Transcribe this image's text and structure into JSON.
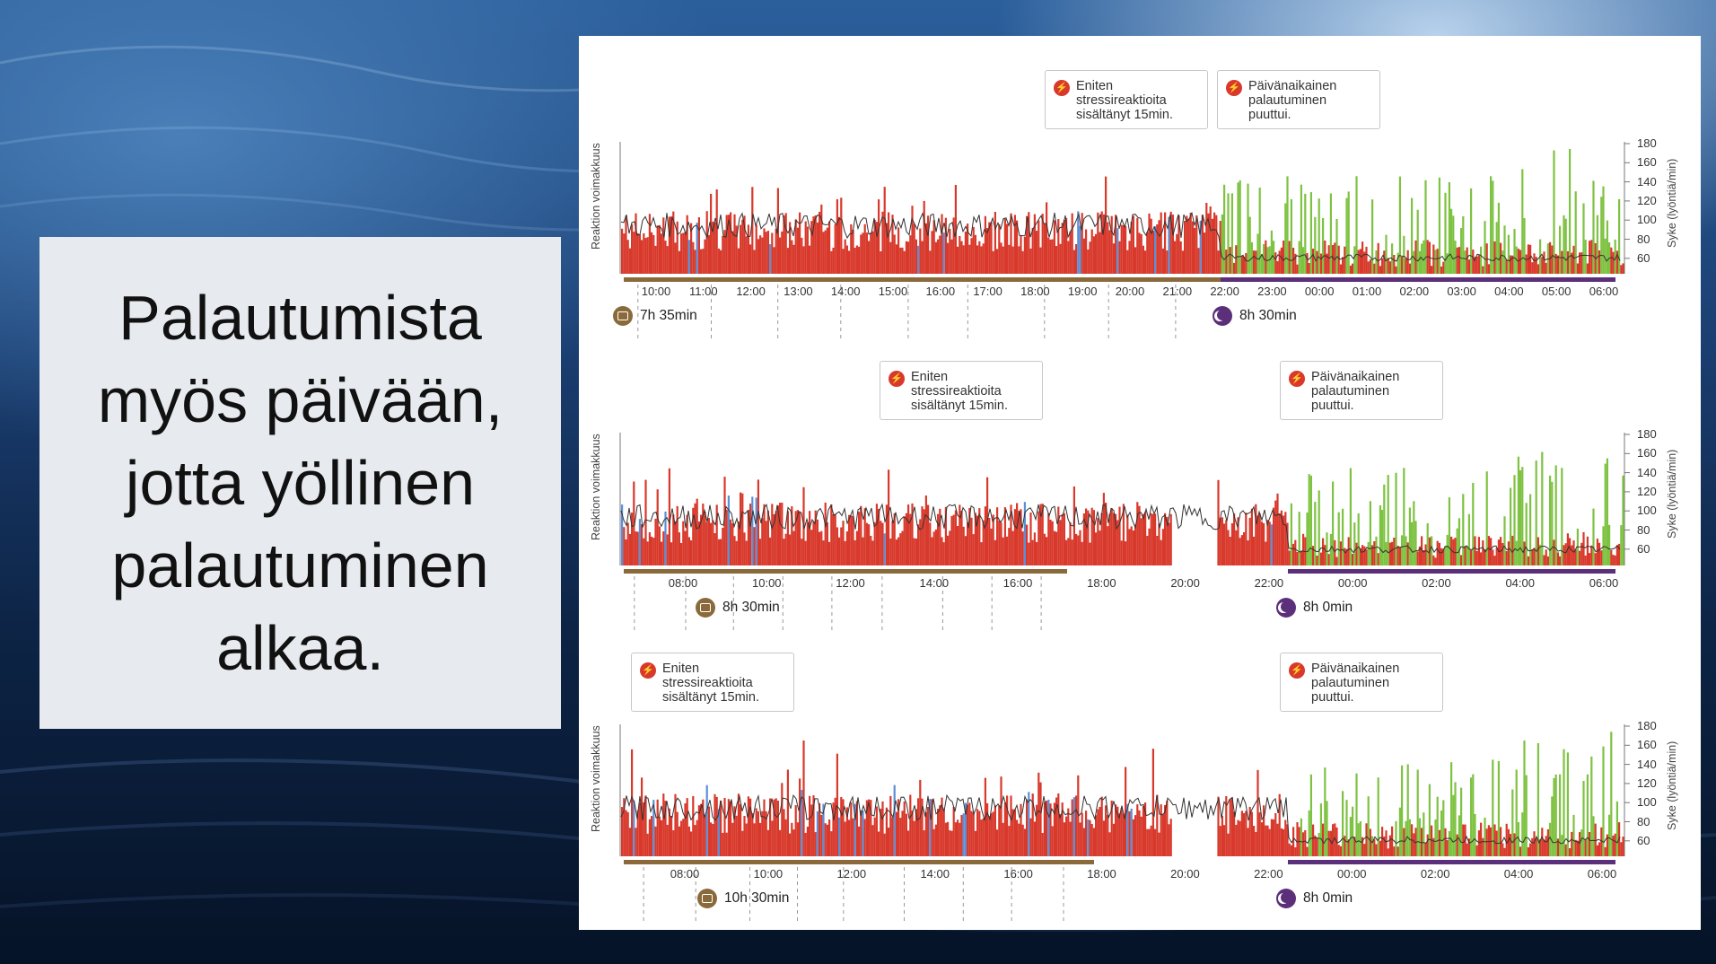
{
  "slide": {
    "headline": "Palautumista myös päivään, jotta yöllinen palautuminen alkaa."
  },
  "colors": {
    "stress": "#d8392b",
    "recovery": "#7ec242",
    "activity": "#5b8fd6",
    "heart_rate_line": "#333333",
    "work_bar": "#8a6a3b",
    "sleep_bar": "#5b2f7a"
  },
  "axis": {
    "left_title": "Reaktion voimakkuus",
    "right_title": "Syke (lyöntiä/min)",
    "hr_ticks": [
      "180",
      "160",
      "140",
      "120",
      "100",
      "80",
      "60"
    ]
  },
  "charts": [
    {
      "annotations": [
        {
          "kind": "stress",
          "lines": [
            "Eniten",
            "stressireaktioita",
            "sisältänyt 15min."
          ]
        },
        {
          "kind": "stress",
          "lines": [
            "Päivänaikainen",
            "palautuminen",
            "puuttui."
          ]
        }
      ],
      "x_ticks": [
        "10:00",
        "11:00",
        "12:00",
        "13:00",
        "14:00",
        "15:00",
        "16:00",
        "17:00",
        "18:00",
        "19:00",
        "20:00",
        "21:00",
        "22:00",
        "23:00",
        "00:00",
        "01:00",
        "02:00",
        "03:00",
        "04:00",
        "05:00",
        "06:00"
      ],
      "work_duration": "7h 35min",
      "sleep_duration": "8h 30min"
    },
    {
      "annotations": [
        {
          "kind": "stress",
          "lines": [
            "Eniten",
            "stressireaktioita",
            "sisältänyt 15min."
          ]
        },
        {
          "kind": "stress",
          "lines": [
            "Päivänaikainen",
            "palautuminen",
            "puuttui."
          ]
        }
      ],
      "x_ticks": [
        "08:00",
        "10:00",
        "12:00",
        "14:00",
        "16:00",
        "18:00",
        "20:00",
        "22:00",
        "00:00",
        "02:00",
        "04:00",
        "06:00"
      ],
      "work_duration": "8h 30min",
      "sleep_duration": "8h 0min"
    },
    {
      "annotations": [
        {
          "kind": "stress",
          "lines": [
            "Eniten",
            "stressireaktioita",
            "sisältänyt 15min."
          ]
        },
        {
          "kind": "stress",
          "lines": [
            "Päivänaikainen",
            "palautuminen",
            "puuttui."
          ]
        }
      ],
      "x_ticks": [
        "08:00",
        "10:00",
        "12:00",
        "14:00",
        "16:00",
        "18:00",
        "20:00",
        "22:00",
        "00:00",
        "02:00",
        "04:00",
        "06:00"
      ],
      "work_duration": "10h 30min",
      "sleep_duration": "8h 0min"
    }
  ],
  "icons": [
    "lightning-icon",
    "briefcase-icon",
    "moon-icon"
  ]
}
